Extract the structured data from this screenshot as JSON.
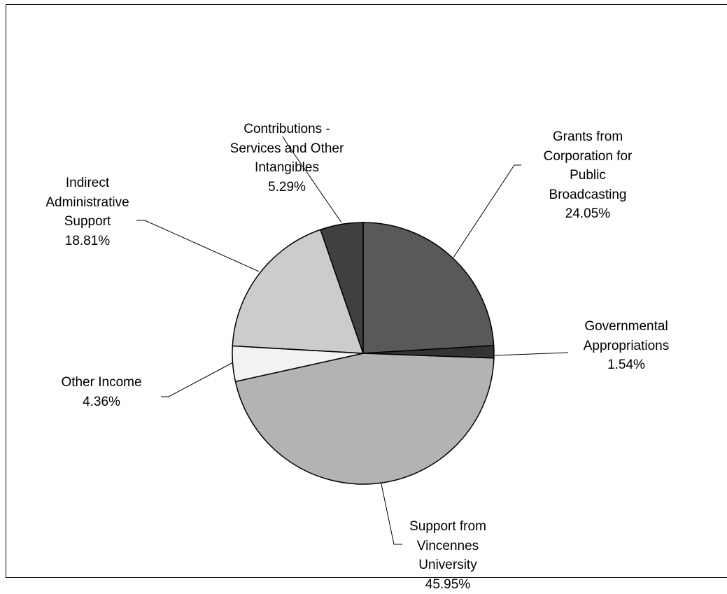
{
  "chart_data": {
    "type": "pie",
    "categories": [
      "Grants from Corporation for Public Broadcasting",
      "Governmental Appropriations",
      "Support from Vincennes University",
      "Other Income",
      "Indirect Administrative Support",
      "Contributions - Services and Other Intangibles"
    ],
    "values": [
      24.05,
      1.54,
      45.95,
      4.36,
      18.81,
      5.29
    ],
    "value_labels": [
      "24.05%",
      "1.54%",
      "45.95%",
      "4.36%",
      "18.81%",
      "5.29%"
    ],
    "colors": [
      "#595959",
      "#333333",
      "#b3b3b3",
      "#f2f2f2",
      "#cccccc",
      "#404040"
    ]
  }
}
